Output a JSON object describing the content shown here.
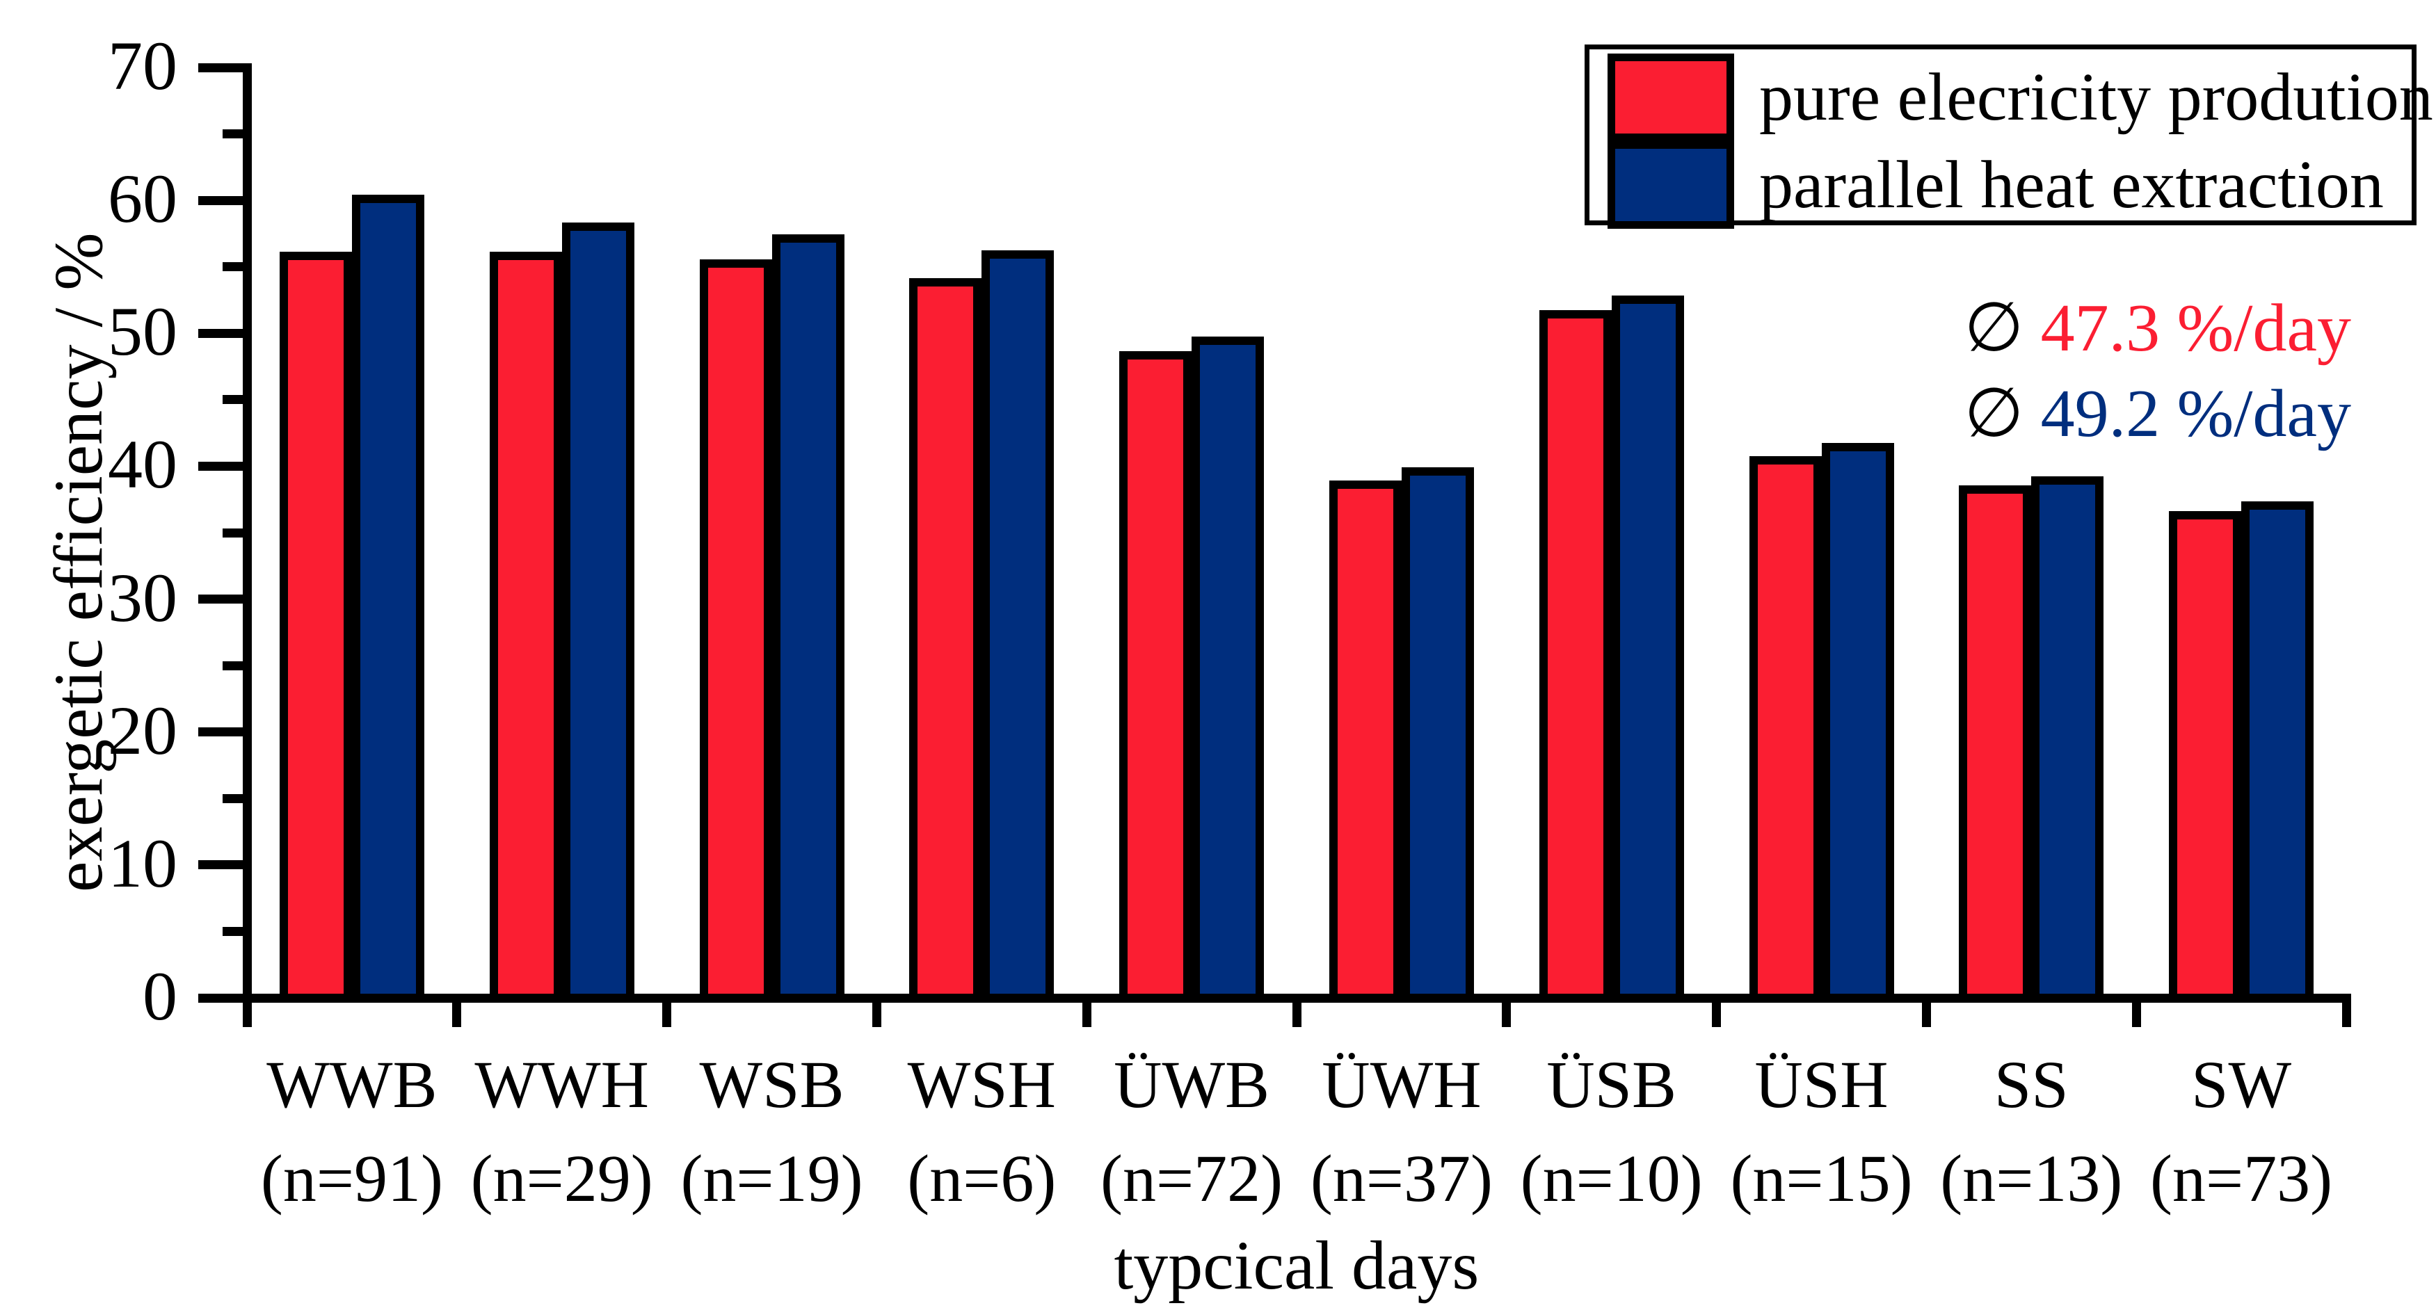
{
  "chart_data": {
    "type": "bar",
    "title": "",
    "xlabel": "typcical days",
    "ylabel": "exergetic efficiency / %",
    "ylim": [
      0,
      70
    ],
    "y_major_ticks": [
      0,
      10,
      20,
      30,
      40,
      50,
      60,
      70
    ],
    "y_minor_tick_step": 5,
    "grid": false,
    "legend_position": "top-right",
    "categories": [
      "WWB",
      "WWH",
      "WSB",
      "WSH",
      "ÜWB",
      "ÜWH",
      "ÜSB",
      "ÜSH",
      "SS",
      "SW"
    ],
    "category_counts": [
      "(n=91)",
      "(n=29)",
      "(n=19)",
      "(n=6)",
      "(n=72)",
      "(n=37)",
      "(n=10)",
      "(n=15)",
      "(n=13)",
      "(n=73)"
    ],
    "series": [
      {
        "name": "pure elecricity prodution",
        "color": "#FB1E32",
        "values": [
          55.8,
          55.8,
          55.2,
          53.8,
          48.3,
          38.6,
          51.4,
          40.4,
          38.2,
          36.3
        ]
      },
      {
        "name": "parallel heat extraction",
        "color": "#002E7E",
        "values": [
          60.1,
          58.0,
          57.1,
          55.9,
          49.4,
          39.6,
          52.5,
          41.4,
          38.9,
          37.0
        ]
      }
    ]
  },
  "annotations": [
    {
      "symbol": "∅ ",
      "text": "47.3 %/day",
      "color": "#FB1E32"
    },
    {
      "symbol": "∅ ",
      "text": "49.2 %/day",
      "color": "#002E7E"
    }
  ]
}
